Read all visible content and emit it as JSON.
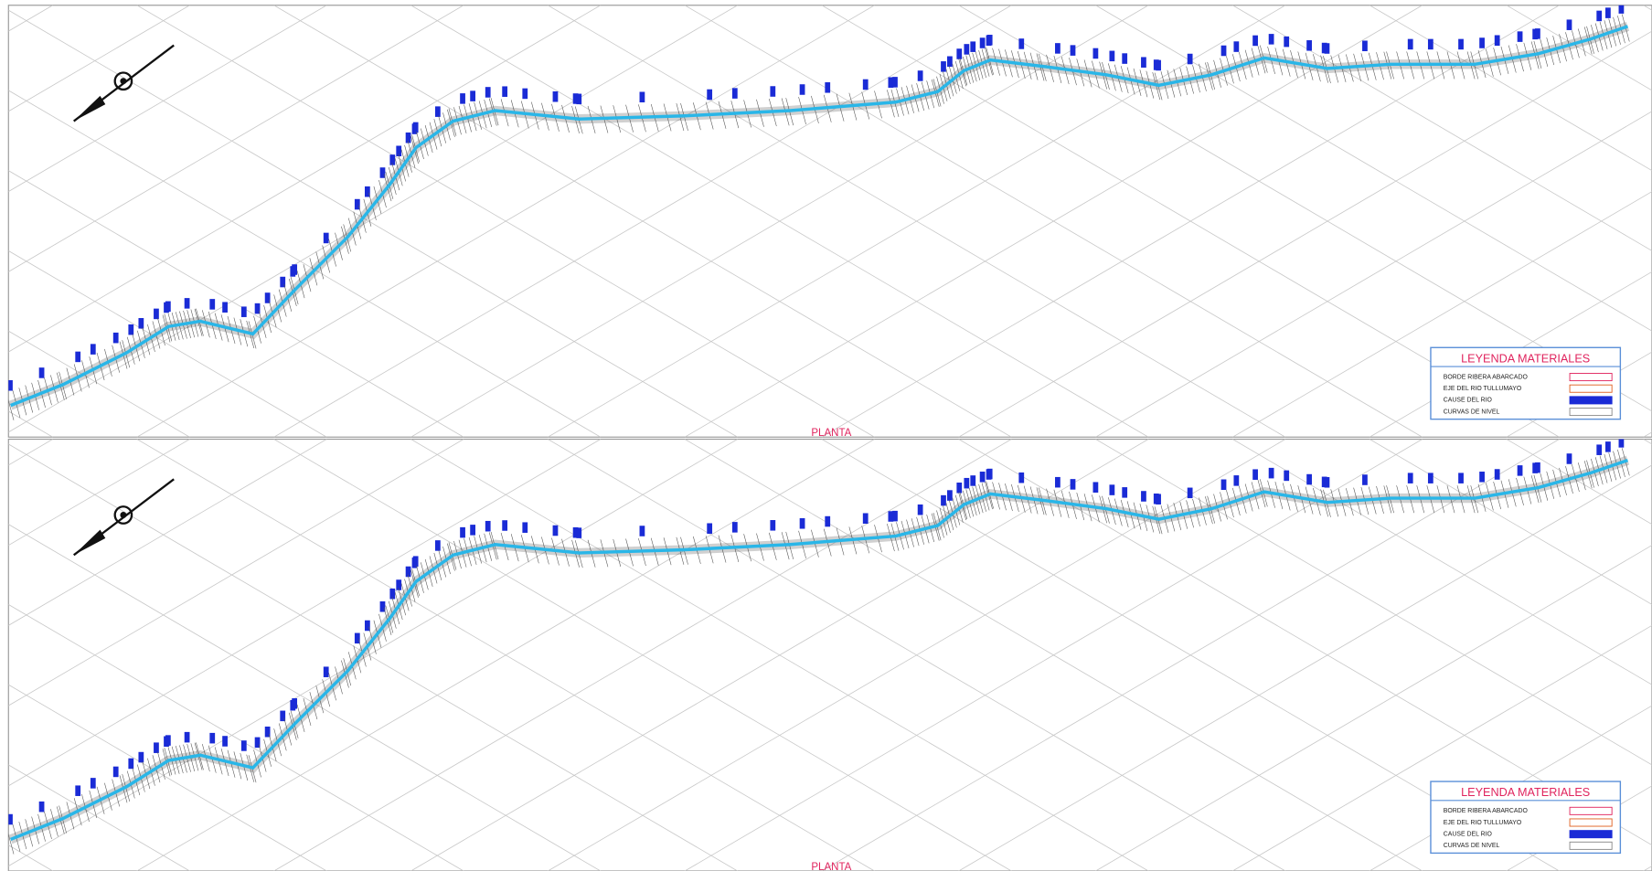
{
  "panels": [
    {
      "legend": {
        "title": "LEYENDA  MATERIALES",
        "items": [
          "BORDE RIBERA ABARCADO",
          "EJE DEL RIO TULLUMAYO",
          "CAUSE DEL RIO",
          "CURVAS DE NIVEL"
        ]
      },
      "label": "PLANTA"
    },
    {
      "legend": {
        "title": "LEYENDA  MATERIALES",
        "items": [
          "BORDE RIBERA ABARCADO",
          "EJE DEL RIO TULLUMAYO",
          "CAUSE DEL RIO",
          "CURVAS DE NIVEL"
        ]
      },
      "label": "PLANTA"
    }
  ]
}
